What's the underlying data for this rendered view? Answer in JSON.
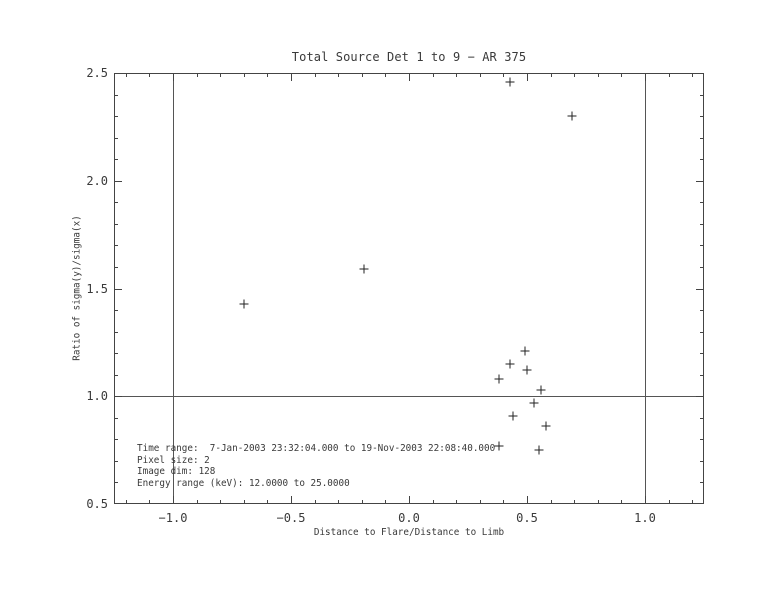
{
  "chart_data": {
    "type": "scatter",
    "title": "Total Source Det 1 to 9 − AR 375",
    "xlabel": "Distance to Flare/Distance to Limb",
    "ylabel": "Ratio of sigma(y)/sigma(x)",
    "xlim": [
      -1.25,
      1.25
    ],
    "ylim": [
      0.5,
      2.5
    ],
    "grid": false,
    "legend": "none",
    "marker": "plus",
    "x_major_ticks": [
      {
        "value": -1.0,
        "label": "−1.0"
      },
      {
        "value": -0.5,
        "label": "−0.5"
      },
      {
        "value": 0.0,
        "label": "0.0"
      },
      {
        "value": 0.5,
        "label": "0.5"
      },
      {
        "value": 1.0,
        "label": "1.0"
      }
    ],
    "y_major_ticks": [
      {
        "value": 0.5,
        "label": "0.5"
      },
      {
        "value": 1.0,
        "label": "1.0"
      },
      {
        "value": 1.5,
        "label": "1.5"
      },
      {
        "value": 2.0,
        "label": "2.0"
      },
      {
        "value": 2.5,
        "label": "2.5"
      }
    ],
    "minor_tick_step": 0.1,
    "reference_lines": {
      "horizontal": [
        1.0
      ],
      "vertical": [
        -1.0,
        1.0
      ]
    },
    "points": [
      {
        "x": -0.7,
        "y": 1.43
      },
      {
        "x": -0.19,
        "y": 1.59
      },
      {
        "x": 0.43,
        "y": 2.46
      },
      {
        "x": 0.69,
        "y": 2.3
      },
      {
        "x": 0.49,
        "y": 1.21
      },
      {
        "x": 0.43,
        "y": 1.15
      },
      {
        "x": 0.5,
        "y": 1.12
      },
      {
        "x": 0.38,
        "y": 1.08
      },
      {
        "x": 0.56,
        "y": 1.03
      },
      {
        "x": 0.53,
        "y": 0.97
      },
      {
        "x": 0.44,
        "y": 0.91
      },
      {
        "x": 0.58,
        "y": 0.86
      },
      {
        "x": 0.38,
        "y": 0.77
      },
      {
        "x": 0.55,
        "y": 0.75
      }
    ],
    "annotations": [
      "Time range:  7-Jan-2003 23:32:04.000 to 19-Nov-2003 22:08:40.000",
      "Pixel size: 2",
      "Image dim: 128",
      "Energy range (keV): 12.0000 to 25.0000"
    ],
    "colors": {
      "background": "#ffffff",
      "axis": "#444444",
      "reference_line": "#555555",
      "marker": "#222222",
      "text": "#3a3a3a"
    }
  }
}
